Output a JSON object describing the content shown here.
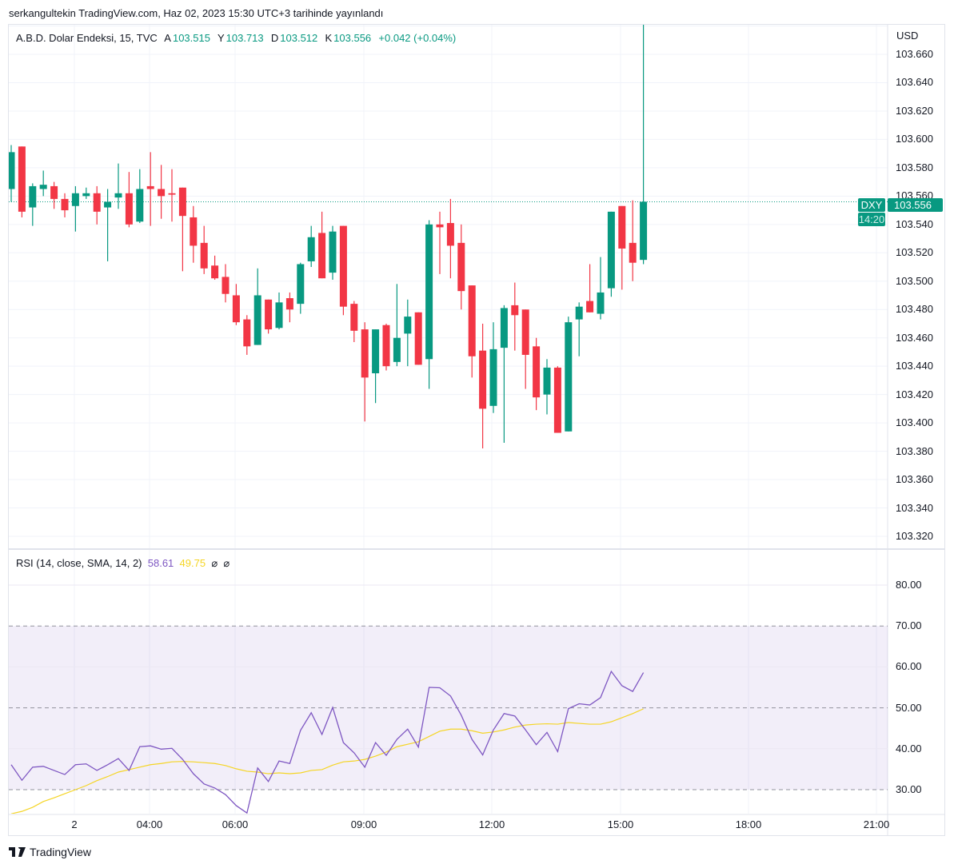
{
  "published": "serkangultekin TradingView.com, Haz 02, 2023 15:30 UTC+3 tarihinde yayınlandı",
  "legend": {
    "symbol": "A.B.D. Dolar Endeksi, 15, TVC",
    "open_label": "A",
    "open": "103.515",
    "high_label": "Y",
    "high": "103.713",
    "low_label": "D",
    "low": "103.512",
    "close_label": "K",
    "close": "103.556",
    "change": "+0.042 (+0.04%)"
  },
  "currency": "USD",
  "price_badge": {
    "symbol": "DXY",
    "price": "103.556",
    "countdown": "14:20"
  },
  "price_axis": [
    "103.660",
    "103.640",
    "103.620",
    "103.600",
    "103.580",
    "103.560",
    "103.540",
    "103.520",
    "103.500",
    "103.480",
    "103.460",
    "103.440",
    "103.420",
    "103.400",
    "103.380",
    "103.360",
    "103.340",
    "103.320"
  ],
  "rsi_legend": {
    "title": "RSI (14, close, SMA, 14, 2)",
    "rsi": "58.61",
    "sma": "49.75",
    "icon1": "⌀",
    "icon2": "⌀"
  },
  "rsi_axis": [
    "80.00",
    "70.00",
    "60.00",
    "50.00",
    "40.00",
    "30.00"
  ],
  "time_axis": [
    "2",
    "04:00",
    "06:00",
    "09:00",
    "12:00",
    "15:00",
    "18:00",
    "21:00"
  ],
  "brand": "TradingView",
  "colors": {
    "up": "#089981",
    "down": "#f23645",
    "rsi": "#7e57c2",
    "sma": "#f5d525",
    "band": "#7e57c2"
  },
  "chart_data": {
    "type": "candlestick",
    "interval_minutes": 15,
    "ylim": [
      103.31,
      103.69
    ],
    "ohlc": [
      [
        103.565,
        103.596,
        103.556,
        103.591
      ],
      [
        103.595,
        103.595,
        103.545,
        103.549
      ],
      [
        103.552,
        103.569,
        103.539,
        103.567
      ],
      [
        103.565,
        103.578,
        103.56,
        103.568
      ],
      [
        103.567,
        103.57,
        103.551,
        103.558
      ],
      [
        103.558,
        103.562,
        103.545,
        103.55
      ],
      [
        103.553,
        103.567,
        103.535,
        103.562
      ],
      [
        103.56,
        103.566,
        103.558,
        103.562
      ],
      [
        103.562,
        103.567,
        103.54,
        103.549
      ],
      [
        103.552,
        103.565,
        103.514,
        103.556
      ],
      [
        103.559,
        103.583,
        103.551,
        103.562
      ],
      [
        103.562,
        103.577,
        103.538,
        103.54
      ],
      [
        103.542,
        103.579,
        103.541,
        103.565
      ],
      [
        103.567,
        103.591,
        103.539,
        103.565
      ],
      [
        103.565,
        103.582,
        103.544,
        103.56
      ],
      [
        103.562,
        103.579,
        103.542,
        103.561
      ],
      [
        103.566,
        103.566,
        103.507,
        103.546
      ],
      [
        103.545,
        103.553,
        103.513,
        103.525
      ],
      [
        103.527,
        103.539,
        103.505,
        103.509
      ],
      [
        103.511,
        103.518,
        103.501,
        103.502
      ],
      [
        103.503,
        103.512,
        103.485,
        103.491
      ],
      [
        103.49,
        103.498,
        103.469,
        103.471
      ],
      [
        103.473,
        103.476,
        103.448,
        103.454
      ],
      [
        103.455,
        103.509,
        103.455,
        103.49
      ],
      [
        103.487,
        103.487,
        103.463,
        103.466
      ],
      [
        103.467,
        103.492,
        103.466,
        103.485
      ],
      [
        103.488,
        103.492,
        103.471,
        103.48
      ],
      [
        103.484,
        103.513,
        103.477,
        103.512
      ],
      [
        103.514,
        103.539,
        103.51,
        103.531
      ],
      [
        103.534,
        103.549,
        103.502,
        103.502
      ],
      [
        103.506,
        103.539,
        103.501,
        103.535
      ],
      [
        103.539,
        103.539,
        103.476,
        103.482
      ],
      [
        103.484,
        103.486,
        103.457,
        103.465
      ],
      [
        103.466,
        103.471,
        103.401,
        103.432
      ],
      [
        103.435,
        103.466,
        103.414,
        103.466
      ],
      [
        103.469,
        103.47,
        103.437,
        103.44
      ],
      [
        103.443,
        103.498,
        103.44,
        103.46
      ],
      [
        103.463,
        103.487,
        103.44,
        103.475
      ],
      [
        103.478,
        103.478,
        103.441,
        103.441
      ],
      [
        103.445,
        103.543,
        103.424,
        103.54
      ],
      [
        103.54,
        103.549,
        103.505,
        103.538
      ],
      [
        103.541,
        103.558,
        103.502,
        103.525
      ],
      [
        103.527,
        103.54,
        103.48,
        103.493
      ],
      [
        103.497,
        103.497,
        103.432,
        103.447
      ],
      [
        103.451,
        103.47,
        103.382,
        103.41
      ],
      [
        103.412,
        103.471,
        103.407,
        103.452
      ],
      [
        103.453,
        103.483,
        103.386,
        103.481
      ],
      [
        103.483,
        103.499,
        103.451,
        103.476
      ],
      [
        103.48,
        103.48,
        103.424,
        103.448
      ],
      [
        103.454,
        103.46,
        103.409,
        103.418
      ],
      [
        103.42,
        103.445,
        103.406,
        103.439
      ],
      [
        103.439,
        103.44,
        103.393,
        103.393
      ],
      [
        103.394,
        103.475,
        103.394,
        103.471
      ],
      [
        103.473,
        103.485,
        103.447,
        103.482
      ],
      [
        103.486,
        103.512,
        103.478,
        103.478
      ],
      [
        103.477,
        103.517,
        103.473,
        103.492
      ],
      [
        103.495,
        103.549,
        103.489,
        103.549
      ],
      [
        103.553,
        103.553,
        103.494,
        103.523
      ],
      [
        103.527,
        103.557,
        103.5,
        103.513
      ],
      [
        103.515,
        103.713,
        103.512,
        103.556
      ]
    ],
    "last_price": 103.556,
    "rsi": [
      36.1,
      32.3,
      35.5,
      35.7,
      34.7,
      33.7,
      36.1,
      36.3,
      34.7,
      36.1,
      37.6,
      34.7,
      40.5,
      40.7,
      39.9,
      40.1,
      37.4,
      33.9,
      31.4,
      30.4,
      28.8,
      26.1,
      24.3,
      35.3,
      32.0,
      37.0,
      36.4,
      44.5,
      48.8,
      43.5,
      50.1,
      41.5,
      39.0,
      35.5,
      41.5,
      38.4,
      42.3,
      44.8,
      40.4,
      55.0,
      54.9,
      52.9,
      48.2,
      42.3,
      38.5,
      44.6,
      48.6,
      48.0,
      44.6,
      41.0,
      44.0,
      39.3,
      49.8,
      51.0,
      50.7,
      52.5,
      58.9,
      55.4,
      54.0,
      58.61
    ],
    "rsi_sma": [
      24.1,
      24.7,
      25.7,
      27.1,
      28.0,
      29.0,
      30.0,
      31.0,
      32.2,
      33.2,
      34.3,
      34.9,
      35.5,
      36.1,
      36.4,
      36.8,
      36.9,
      36.8,
      36.6,
      36.4,
      35.9,
      35.1,
      34.5,
      34.3,
      33.9,
      34.1,
      33.9,
      34.1,
      34.7,
      34.9,
      36.0,
      36.8,
      37.0,
      37.4,
      38.2,
      39.2,
      40.5,
      41.1,
      41.7,
      43.0,
      44.3,
      44.8,
      44.8,
      44.4,
      43.8,
      44.1,
      44.6,
      45.3,
      45.8,
      46.0,
      46.1,
      46.0,
      46.4,
      46.2,
      46.0,
      46.0,
      46.6,
      47.6,
      48.6,
      49.75
    ],
    "rsi_levels": {
      "upper": 70,
      "middle": 50,
      "lower": 30
    },
    "rsi_ylim": [
      24,
      88
    ]
  }
}
